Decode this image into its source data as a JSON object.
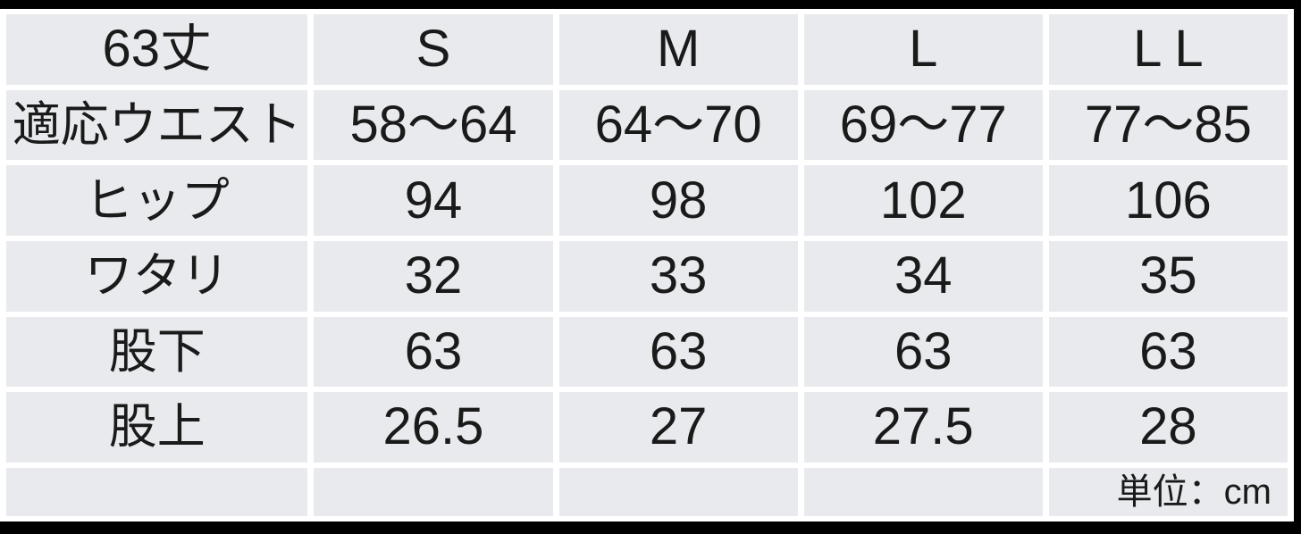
{
  "colors": {
    "cell_fill": "#e8eaed",
    "grid_gap": "#ffffff",
    "frame_border": "#000000",
    "text": "#1a1a1a"
  },
  "chart_data": {
    "type": "table",
    "columns": [
      "63丈",
      "S",
      "M",
      "L",
      "L L"
    ],
    "rows": [
      {
        "label": "適応ウエスト",
        "values": [
          "58～64",
          "64～70",
          "69～77",
          "77～85"
        ]
      },
      {
        "label": "ヒップ",
        "values": [
          "94",
          "98",
          "102",
          "106"
        ]
      },
      {
        "label": "ワタリ",
        "values": [
          "32",
          "33",
          "34",
          "35"
        ]
      },
      {
        "label": "股下",
        "values": [
          "63",
          "63",
          "63",
          "63"
        ]
      },
      {
        "label": "股上",
        "values": [
          "26.5",
          "27",
          "27.5",
          "28"
        ]
      }
    ],
    "unit_note": "単位：cm",
    "layout": {
      "grid": "white gaps between cells, black bars on top/right/bottom edges",
      "unit_note_position": "bottom-right cell, right-aligned"
    }
  }
}
